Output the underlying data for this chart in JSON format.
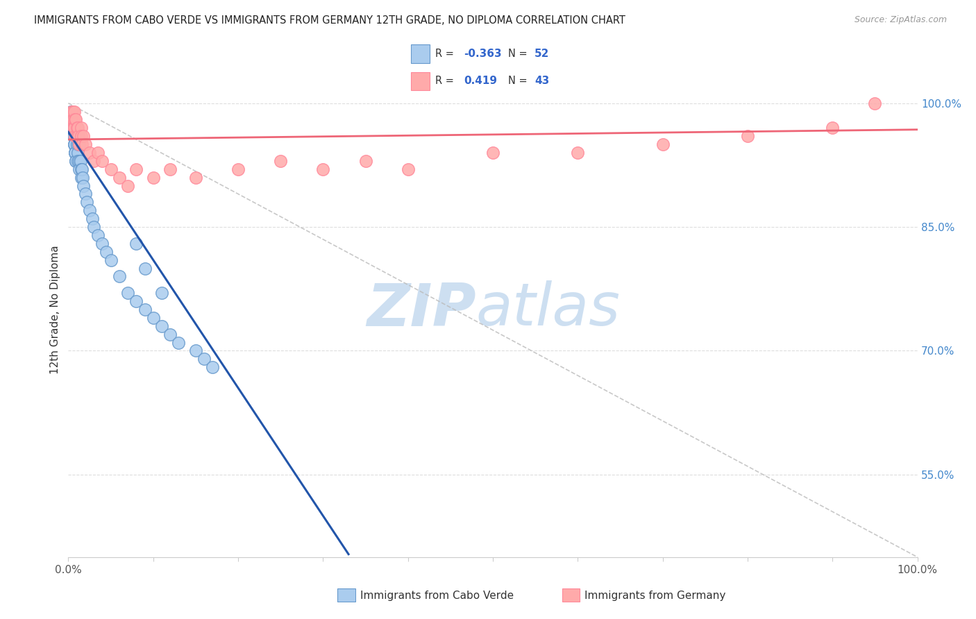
{
  "title": "IMMIGRANTS FROM CABO VERDE VS IMMIGRANTS FROM GERMANY 12TH GRADE, NO DIPLOMA CORRELATION CHART",
  "source": "Source: ZipAtlas.com",
  "ylabel": "12th Grade, No Diploma",
  "yaxis_ticks": [
    0.55,
    0.7,
    0.85,
    1.0
  ],
  "yaxis_labels": [
    "55.0%",
    "70.0%",
    "85.0%",
    "100.0%"
  ],
  "xlim": [
    0.0,
    1.0
  ],
  "ylim": [
    0.45,
    1.05
  ],
  "cabo_verde_R": -0.363,
  "cabo_verde_N": 52,
  "germany_R": 0.419,
  "germany_N": 43,
  "cabo_verde_color": "#AACCEE",
  "germany_color": "#FFAAAA",
  "cabo_verde_edge": "#6699CC",
  "germany_edge": "#FF8899",
  "trend_blue": "#2255AA",
  "trend_pink": "#EE6677",
  "watermark_zip_color": "#C8DCF0",
  "watermark_atlas_color": "#C8DCF0",
  "cabo_verde_x": [
    0.003,
    0.004,
    0.005,
    0.005,
    0.006,
    0.006,
    0.007,
    0.007,
    0.007,
    0.008,
    0.008,
    0.008,
    0.009,
    0.009,
    0.01,
    0.01,
    0.01,
    0.011,
    0.011,
    0.012,
    0.012,
    0.013,
    0.013,
    0.014,
    0.015,
    0.015,
    0.016,
    0.017,
    0.018,
    0.02,
    0.022,
    0.025,
    0.028,
    0.03,
    0.035,
    0.04,
    0.045,
    0.05,
    0.06,
    0.07,
    0.08,
    0.09,
    0.1,
    0.11,
    0.12,
    0.13,
    0.15,
    0.16,
    0.17,
    0.08,
    0.09,
    0.11
  ],
  "cabo_verde_y": [
    0.99,
    0.98,
    0.97,
    0.97,
    0.96,
    0.96,
    0.95,
    0.95,
    0.95,
    0.94,
    0.94,
    0.94,
    0.93,
    0.93,
    0.97,
    0.96,
    0.95,
    0.94,
    0.93,
    0.96,
    0.95,
    0.93,
    0.92,
    0.93,
    0.92,
    0.91,
    0.92,
    0.91,
    0.9,
    0.89,
    0.88,
    0.87,
    0.86,
    0.85,
    0.84,
    0.83,
    0.82,
    0.81,
    0.79,
    0.77,
    0.76,
    0.75,
    0.74,
    0.73,
    0.72,
    0.71,
    0.7,
    0.69,
    0.68,
    0.83,
    0.8,
    0.77
  ],
  "germany_x": [
    0.003,
    0.004,
    0.005,
    0.005,
    0.006,
    0.006,
    0.007,
    0.007,
    0.008,
    0.008,
    0.009,
    0.01,
    0.01,
    0.011,
    0.012,
    0.013,
    0.015,
    0.015,
    0.016,
    0.018,
    0.02,
    0.025,
    0.03,
    0.035,
    0.04,
    0.05,
    0.06,
    0.07,
    0.08,
    0.1,
    0.12,
    0.15,
    0.2,
    0.25,
    0.3,
    0.35,
    0.4,
    0.5,
    0.6,
    0.7,
    0.8,
    0.9,
    0.95
  ],
  "germany_y": [
    0.98,
    0.99,
    0.98,
    0.99,
    0.98,
    0.97,
    0.99,
    0.97,
    0.98,
    0.96,
    0.98,
    0.97,
    0.96,
    0.97,
    0.96,
    0.95,
    0.97,
    0.96,
    0.95,
    0.96,
    0.95,
    0.94,
    0.93,
    0.94,
    0.93,
    0.92,
    0.91,
    0.9,
    0.92,
    0.91,
    0.92,
    0.91,
    0.92,
    0.93,
    0.92,
    0.93,
    0.92,
    0.94,
    0.94,
    0.95,
    0.96,
    0.97,
    1.0
  ],
  "legend_blue_square": "#AACCEE",
  "legend_pink_square": "#FFAAAA"
}
